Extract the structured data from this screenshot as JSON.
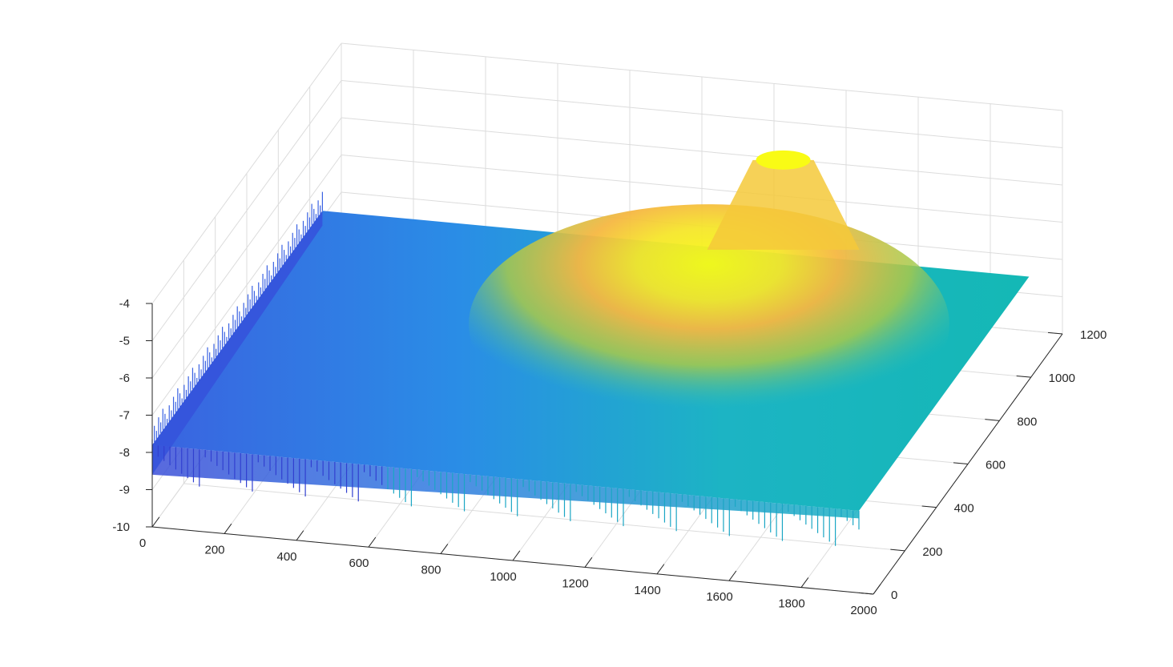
{
  "chart_data": {
    "type": "surface",
    "title": "",
    "xlabel": "",
    "ylabel": "",
    "zlabel": "",
    "grid": true,
    "colormap": "parula",
    "colors": {
      "low": "#3e26a8",
      "mid": "#1aaec8",
      "high": "#f9fb15",
      "peak_orange": "#f5b742",
      "grid": "#dcdcdc",
      "axis": "#262626"
    },
    "x_axis": {
      "range": [
        0,
        2000
      ],
      "ticks": [
        0,
        200,
        400,
        600,
        800,
        1000,
        1200,
        1400,
        1600,
        1800,
        2000
      ],
      "tick_labels": [
        "0",
        "200",
        "400",
        "600",
        "800",
        "1000",
        "1200",
        "1400",
        "1600",
        "1800",
        "2000"
      ]
    },
    "y_axis": {
      "range": [
        0,
        1200
      ],
      "ticks": [
        0,
        200,
        400,
        600,
        800,
        1000,
        1200
      ],
      "tick_labels": [
        "0",
        "200",
        "400",
        "600",
        "800",
        "1000",
        "1200"
      ]
    },
    "z_axis": {
      "range": [
        -10,
        -4
      ],
      "ticks": [
        -10,
        -9,
        -8,
        -7,
        -6,
        -5,
        -4
      ],
      "tick_labels": [
        "-10",
        "-9",
        "-8",
        "-7",
        "-6",
        "-5",
        "-4"
      ]
    },
    "surface": {
      "x_extent": [
        0,
        1960
      ],
      "y_extent": [
        0,
        1080
      ],
      "base_level": -7.8,
      "peak": {
        "x": 1300,
        "y": 1030,
        "z": -4.8
      },
      "low_corner": {
        "x": 0,
        "y": 0,
        "z": -8.6
      }
    }
  }
}
